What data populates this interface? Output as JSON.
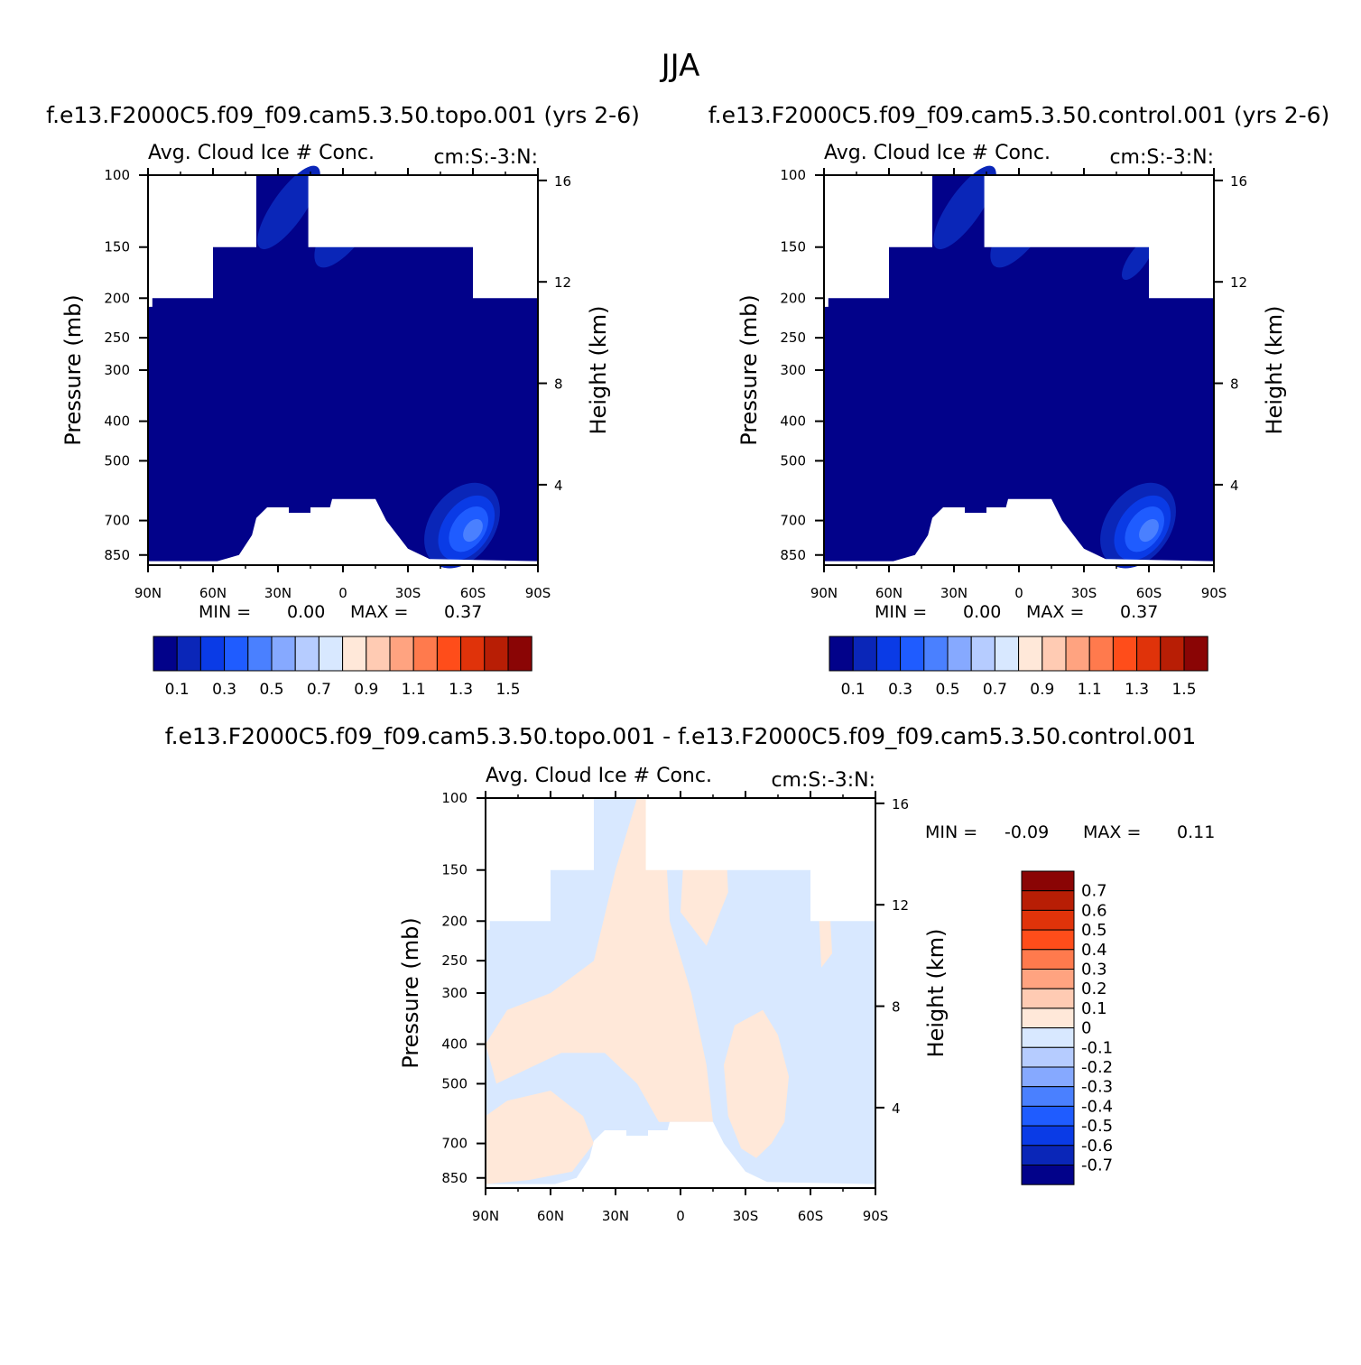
{
  "page": {
    "title": "JJA"
  },
  "colors": {
    "abs_scale": [
      "#02028a",
      "#0a26b8",
      "#0a3be6",
      "#1f5cff",
      "#4a80ff",
      "#86a9ff",
      "#b6ccff",
      "#d8e8ff",
      "#ffe8d9",
      "#ffcbb3",
      "#ffa380",
      "#ff7a4d",
      "#ff4d1a",
      "#e0330a",
      "#b81e05",
      "#8a0505"
    ],
    "diff_scale": [
      "#02028a",
      "#0a26b8",
      "#0a3be6",
      "#1f5cff",
      "#4a80ff",
      "#86a9ff",
      "#b6ccff",
      "#d8e8ff",
      "#ffe8d9",
      "#ffcbb3",
      "#ffa380",
      "#ff7a4d",
      "#ff4d1a",
      "#e0330a",
      "#b81e05",
      "#8a0505"
    ]
  },
  "chart_data": [
    {
      "type": "heatmap",
      "title": "f.e13.F2000C5.f09_f09.cam5.3.50.topo.001 (yrs 2-6)",
      "subtitle_left": "Avg. Cloud Ice # Conc.",
      "subtitle_right": "cm:S:-3:N:",
      "ylabel": "Pressure (mb)",
      "y2label": "Height (km)",
      "x_ticks": [
        "90N",
        "60N",
        "30N",
        "0",
        "30S",
        "60S",
        "90S"
      ],
      "y_ticks": [
        "100",
        "150",
        "200",
        "250",
        "300",
        "400",
        "500",
        "700",
        "850"
      ],
      "y_tick_values": [
        100,
        150,
        200,
        250,
        300,
        400,
        500,
        700,
        850
      ],
      "y2_ticks": [
        "16",
        "12",
        "8",
        "4"
      ],
      "y2_tick_values": [
        16,
        12,
        8,
        4
      ],
      "ylim": [
        100,
        900
      ],
      "xlim": [
        90,
        -90
      ],
      "min_label": "MIN =",
      "min_value": "0.00",
      "max_label": "MAX =",
      "max_value": "0.37",
      "colorbar_labels": [
        "0.1",
        "0.3",
        "0.5",
        "0.7",
        "0.9",
        "1.1",
        "1.3",
        "1.5"
      ],
      "fill_color": "#02028a",
      "features": "dominant value ~0.05 (dark blue); maximum 0.37 near 50-60S at 700-800 mb; slightly higher (~0.1-0.2) values in upper troposphere near 20N-10S"
    },
    {
      "type": "heatmap",
      "title": "f.e13.F2000C5.f09_f09.cam5.3.50.control.001 (yrs 2-6)",
      "subtitle_left": "Avg. Cloud Ice # Conc.",
      "subtitle_right": "cm:S:-3:N:",
      "ylabel": "Pressure (mb)",
      "y2label": "Height (km)",
      "x_ticks": [
        "90N",
        "60N",
        "30N",
        "0",
        "30S",
        "60S",
        "90S"
      ],
      "y_ticks": [
        "100",
        "150",
        "200",
        "250",
        "300",
        "400",
        "500",
        "700",
        "850"
      ],
      "y_tick_values": [
        100,
        150,
        200,
        250,
        300,
        400,
        500,
        700,
        850
      ],
      "y2_ticks": [
        "16",
        "12",
        "8",
        "4"
      ],
      "y2_tick_values": [
        16,
        12,
        8,
        4
      ],
      "ylim": [
        100,
        900
      ],
      "xlim": [
        90,
        -90
      ],
      "min_label": "MIN =",
      "min_value": "0.00",
      "max_label": "MAX =",
      "max_value": "0.37",
      "colorbar_labels": [
        "0.1",
        "0.3",
        "0.5",
        "0.7",
        "0.9",
        "1.1",
        "1.3",
        "1.5"
      ],
      "fill_color": "#02028a",
      "features": "dominant value ~0.05 (dark blue); maximum 0.37 near 50-60S at 700-800 mb; slightly higher values in upper troposphere near 20N-10S and 55S"
    },
    {
      "type": "heatmap",
      "title": "f.e13.F2000C5.f09_f09.cam5.3.50.topo.001 - f.e13.F2000C5.f09_f09.cam5.3.50.control.001",
      "subtitle_left": "Avg. Cloud Ice # Conc.",
      "subtitle_right": "cm:S:-3:N:",
      "ylabel": "Pressure (mb)",
      "y2label": "Height (km)",
      "x_ticks": [
        "90N",
        "60N",
        "30N",
        "0",
        "30S",
        "60S",
        "90S"
      ],
      "y_ticks": [
        "100",
        "150",
        "200",
        "250",
        "300",
        "400",
        "500",
        "700",
        "850"
      ],
      "y_tick_values": [
        100,
        150,
        200,
        250,
        300,
        400,
        500,
        700,
        850
      ],
      "y2_ticks": [
        "16",
        "12",
        "8",
        "4"
      ],
      "y2_tick_values": [
        16,
        12,
        8,
        4
      ],
      "ylim": [
        100,
        900
      ],
      "xlim": [
        90,
        -90
      ],
      "min_label": "MIN =",
      "min_value": "-0.09",
      "max_label": "MAX =",
      "max_value": "0.11",
      "colorbar_labels": [
        "0.7",
        "0.6",
        "0.5",
        "0.4",
        "0.3",
        "0.2",
        "0.1",
        "0",
        "-0.1",
        "-0.2",
        "-0.3",
        "-0.4",
        "-0.5",
        "-0.6",
        "-0.7"
      ],
      "features": "small differences between -0.1 and 0.1; positive (light orange) patches mainly 60N-10S and 20S-50S lower troposphere; negative (light blue) elsewhere"
    }
  ]
}
